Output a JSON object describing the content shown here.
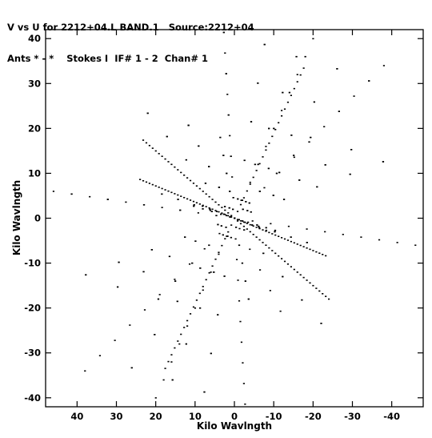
{
  "header": {
    "line1": "V vs U for 2212+04.L BAND.1   Source:2212+04",
    "line2": "Ants * - *    Stokes I  IF# 1 - 2  Chan# 1"
  },
  "chart_data": {
    "type": "scatter",
    "title": "V vs U for 2212+04.L BAND.1   Source:2212+04",
    "subtitle": "Ants * - *    Stokes I  IF# 1 - 2  Chan# 1",
    "xlabel": "Kilo Wavlngth",
    "ylabel": "Kilo Wavlngth",
    "xlim": [
      48,
      -48
    ],
    "ylim": [
      -42,
      42
    ],
    "x_reversed": true,
    "x_ticks": [
      40,
      30,
      20,
      10,
      0,
      -10,
      -20,
      -30,
      -40
    ],
    "x_tick_labels": [
      "40",
      "30",
      "20",
      "10",
      "0",
      "-10",
      "-20",
      "-30",
      "-40"
    ],
    "y_ticks": [
      40,
      30,
      20,
      10,
      0,
      -10,
      -20,
      -30,
      -40
    ],
    "y_tick_labels": [
      "40",
      "30",
      "20",
      "10",
      "0",
      "-10",
      "-20",
      "-30",
      "-40"
    ],
    "grid": false,
    "marker_color": "#000000",
    "pattern": "six-armed snapshot uv-coverage star",
    "series": [
      {
        "arms": [
          {
            "u": 46,
            "v": 6
          },
          {
            "u": -20,
            "v": 40
          },
          {
            "u": -46,
            "v": -6
          },
          {
            "u": 20,
            "v": -40
          },
          {
            "u": -38,
            "v": 34
          },
          {
            "u": 38,
            "v": -34
          },
          {
            "u": 3,
            "v": 46
          },
          {
            "u": -3,
            "v": -46
          }
        ],
        "baseline_fractions": [
          0.1,
          0.2,
          0.3,
          0.4,
          0.5,
          0.6,
          0.7,
          0.8,
          0.9,
          1.0
        ]
      }
    ]
  }
}
